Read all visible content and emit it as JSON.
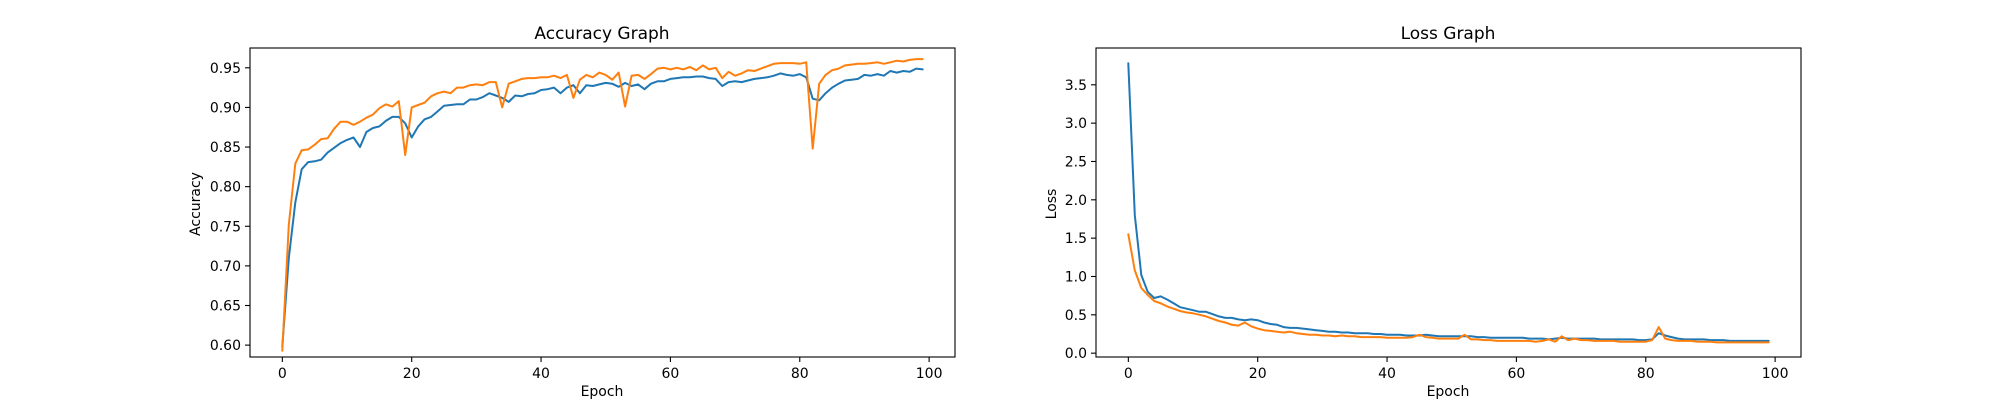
{
  "chart_data": [
    {
      "type": "line",
      "title": "Accuracy Graph",
      "xlabel": "Epoch",
      "ylabel": "Accuracy",
      "xlim": [
        -5,
        104
      ],
      "ylim": [
        0.585,
        0.975
      ],
      "xticks": [
        0,
        20,
        40,
        60,
        80,
        100
      ],
      "yticks": [
        0.6,
        0.65,
        0.7,
        0.75,
        0.8,
        0.85,
        0.9,
        0.95
      ],
      "ytick_labels": [
        "0.60",
        "0.65",
        "0.70",
        "0.75",
        "0.80",
        "0.85",
        "0.90",
        "0.95"
      ],
      "grid": false,
      "series": [
        {
          "color": "#1f77b4",
          "x": [
            0,
            1,
            2,
            3,
            4,
            5,
            6,
            7,
            8,
            9,
            10,
            11,
            12,
            13,
            14,
            15,
            16,
            17,
            18,
            19,
            20,
            21,
            22,
            23,
            24,
            25,
            26,
            27,
            28,
            29,
            30,
            31,
            32,
            33,
            34,
            35,
            36,
            37,
            38,
            39,
            40,
            41,
            42,
            43,
            44,
            45,
            46,
            47,
            48,
            49,
            50,
            51,
            52,
            53,
            54,
            55,
            56,
            57,
            58,
            59,
            60,
            61,
            62,
            63,
            64,
            65,
            66,
            67,
            68,
            69,
            70,
            71,
            72,
            73,
            74,
            75,
            76,
            77,
            78,
            79,
            80,
            81,
            82,
            83,
            84,
            85,
            86,
            87,
            88,
            89,
            90,
            91,
            92,
            93,
            94,
            95,
            96,
            97,
            98,
            99
          ],
          "values": [
            0.598,
            0.71,
            0.78,
            0.822,
            0.831,
            0.832,
            0.834,
            0.843,
            0.849,
            0.855,
            0.859,
            0.862,
            0.85,
            0.869,
            0.874,
            0.876,
            0.883,
            0.888,
            0.888,
            0.88,
            0.862,
            0.876,
            0.885,
            0.888,
            0.895,
            0.902,
            0.903,
            0.904,
            0.904,
            0.91,
            0.91,
            0.913,
            0.918,
            0.915,
            0.912,
            0.907,
            0.915,
            0.914,
            0.917,
            0.918,
            0.922,
            0.923,
            0.925,
            0.918,
            0.925,
            0.928,
            0.918,
            0.928,
            0.927,
            0.929,
            0.931,
            0.93,
            0.926,
            0.931,
            0.927,
            0.929,
            0.923,
            0.93,
            0.933,
            0.933,
            0.936,
            0.937,
            0.938,
            0.938,
            0.939,
            0.939,
            0.937,
            0.936,
            0.927,
            0.932,
            0.933,
            0.932,
            0.934,
            0.936,
            0.937,
            0.938,
            0.94,
            0.943,
            0.941,
            0.94,
            0.942,
            0.938,
            0.911,
            0.909,
            0.918,
            0.925,
            0.93,
            0.934,
            0.935,
            0.936,
            0.941,
            0.94,
            0.942,
            0.94,
            0.946,
            0.944,
            0.946,
            0.945,
            0.949,
            0.948
          ]
        },
        {
          "color": "#ff7f0e",
          "x": [
            0,
            1,
            2,
            3,
            4,
            5,
            6,
            7,
            8,
            9,
            10,
            11,
            12,
            13,
            14,
            15,
            16,
            17,
            18,
            19,
            20,
            21,
            22,
            23,
            24,
            25,
            26,
            27,
            28,
            29,
            30,
            31,
            32,
            33,
            34,
            35,
            36,
            37,
            38,
            39,
            40,
            41,
            42,
            43,
            44,
            45,
            46,
            47,
            48,
            49,
            50,
            51,
            52,
            53,
            54,
            55,
            56,
            57,
            58,
            59,
            60,
            61,
            62,
            63,
            64,
            65,
            66,
            67,
            68,
            69,
            70,
            71,
            72,
            73,
            74,
            75,
            76,
            77,
            78,
            79,
            80,
            81,
            82,
            83,
            84,
            85,
            86,
            87,
            88,
            89,
            90,
            91,
            92,
            93,
            94,
            95,
            96,
            97,
            98,
            99
          ],
          "values": [
            0.593,
            0.752,
            0.829,
            0.846,
            0.847,
            0.853,
            0.86,
            0.861,
            0.873,
            0.882,
            0.882,
            0.878,
            0.882,
            0.887,
            0.891,
            0.899,
            0.904,
            0.901,
            0.908,
            0.84,
            0.9,
            0.903,
            0.906,
            0.914,
            0.918,
            0.92,
            0.918,
            0.925,
            0.925,
            0.928,
            0.929,
            0.928,
            0.932,
            0.932,
            0.9,
            0.93,
            0.933,
            0.936,
            0.937,
            0.937,
            0.938,
            0.938,
            0.94,
            0.937,
            0.941,
            0.912,
            0.935,
            0.941,
            0.938,
            0.944,
            0.941,
            0.935,
            0.944,
            0.901,
            0.94,
            0.941,
            0.936,
            0.942,
            0.949,
            0.95,
            0.948,
            0.95,
            0.948,
            0.951,
            0.947,
            0.953,
            0.948,
            0.95,
            0.937,
            0.945,
            0.94,
            0.943,
            0.947,
            0.946,
            0.949,
            0.952,
            0.955,
            0.956,
            0.956,
            0.956,
            0.955,
            0.957,
            0.848,
            0.93,
            0.941,
            0.947,
            0.949,
            0.953,
            0.954,
            0.955,
            0.955,
            0.956,
            0.957,
            0.955,
            0.957,
            0.959,
            0.958,
            0.96,
            0.961,
            0.961
          ]
        }
      ]
    },
    {
      "type": "line",
      "title": "Loss Graph",
      "xlabel": "Epoch",
      "ylabel": "Loss",
      "xlim": [
        -5,
        104
      ],
      "ylim": [
        -0.05,
        3.98
      ],
      "xticks": [
        0,
        20,
        40,
        60,
        80,
        100
      ],
      "yticks": [
        0.0,
        0.5,
        1.0,
        1.5,
        2.0,
        2.5,
        3.0,
        3.5
      ],
      "ytick_labels": [
        "0.0",
        "0.5",
        "1.0",
        "1.5",
        "2.0",
        "2.5",
        "3.0",
        "3.5"
      ],
      "grid": false,
      "series": [
        {
          "color": "#1f77b4",
          "x": [
            0,
            1,
            2,
            3,
            4,
            5,
            6,
            7,
            8,
            9,
            10,
            11,
            12,
            13,
            14,
            15,
            16,
            17,
            18,
            19,
            20,
            21,
            22,
            23,
            24,
            25,
            26,
            27,
            28,
            29,
            30,
            31,
            32,
            33,
            34,
            35,
            36,
            37,
            38,
            39,
            40,
            41,
            42,
            43,
            44,
            45,
            46,
            47,
            48,
            49,
            50,
            51,
            52,
            53,
            54,
            55,
            56,
            57,
            58,
            59,
            60,
            61,
            62,
            63,
            64,
            65,
            66,
            67,
            68,
            69,
            70,
            71,
            72,
            73,
            74,
            75,
            76,
            77,
            78,
            79,
            80,
            81,
            82,
            83,
            84,
            85,
            86,
            87,
            88,
            89,
            90,
            91,
            92,
            93,
            94,
            95,
            96,
            97,
            98,
            99
          ],
          "values": [
            3.78,
            1.8,
            1.02,
            0.8,
            0.72,
            0.74,
            0.7,
            0.65,
            0.6,
            0.58,
            0.56,
            0.54,
            0.54,
            0.51,
            0.48,
            0.46,
            0.46,
            0.44,
            0.43,
            0.44,
            0.43,
            0.4,
            0.38,
            0.37,
            0.34,
            0.33,
            0.33,
            0.32,
            0.31,
            0.3,
            0.29,
            0.28,
            0.28,
            0.27,
            0.27,
            0.26,
            0.26,
            0.26,
            0.25,
            0.25,
            0.24,
            0.24,
            0.24,
            0.23,
            0.23,
            0.23,
            0.24,
            0.23,
            0.22,
            0.22,
            0.22,
            0.22,
            0.22,
            0.22,
            0.21,
            0.21,
            0.2,
            0.2,
            0.2,
            0.2,
            0.2,
            0.2,
            0.19,
            0.19,
            0.19,
            0.18,
            0.19,
            0.2,
            0.19,
            0.19,
            0.19,
            0.19,
            0.19,
            0.18,
            0.18,
            0.18,
            0.18,
            0.18,
            0.18,
            0.17,
            0.17,
            0.18,
            0.26,
            0.23,
            0.21,
            0.19,
            0.18,
            0.18,
            0.18,
            0.18,
            0.17,
            0.17,
            0.17,
            0.16,
            0.16,
            0.16,
            0.16,
            0.16,
            0.16,
            0.16
          ]
        },
        {
          "color": "#ff7f0e",
          "x": [
            0,
            1,
            2,
            3,
            4,
            5,
            6,
            7,
            8,
            9,
            10,
            11,
            12,
            13,
            14,
            15,
            16,
            17,
            18,
            19,
            20,
            21,
            22,
            23,
            24,
            25,
            26,
            27,
            28,
            29,
            30,
            31,
            32,
            33,
            34,
            35,
            36,
            37,
            38,
            39,
            40,
            41,
            42,
            43,
            44,
            45,
            46,
            47,
            48,
            49,
            50,
            51,
            52,
            53,
            54,
            55,
            56,
            57,
            58,
            59,
            60,
            61,
            62,
            63,
            64,
            65,
            66,
            67,
            68,
            69,
            70,
            71,
            72,
            73,
            74,
            75,
            76,
            77,
            78,
            79,
            80,
            81,
            82,
            83,
            84,
            85,
            86,
            87,
            88,
            89,
            90,
            91,
            92,
            93,
            94,
            95,
            96,
            97,
            98,
            99
          ],
          "values": [
            1.55,
            1.08,
            0.85,
            0.76,
            0.68,
            0.65,
            0.61,
            0.58,
            0.55,
            0.53,
            0.52,
            0.5,
            0.48,
            0.45,
            0.42,
            0.4,
            0.37,
            0.36,
            0.4,
            0.35,
            0.32,
            0.3,
            0.29,
            0.28,
            0.27,
            0.28,
            0.26,
            0.25,
            0.24,
            0.24,
            0.23,
            0.23,
            0.22,
            0.23,
            0.22,
            0.22,
            0.21,
            0.21,
            0.21,
            0.21,
            0.2,
            0.2,
            0.2,
            0.2,
            0.21,
            0.24,
            0.21,
            0.2,
            0.19,
            0.19,
            0.19,
            0.19,
            0.24,
            0.18,
            0.18,
            0.17,
            0.17,
            0.16,
            0.16,
            0.16,
            0.16,
            0.16,
            0.16,
            0.15,
            0.16,
            0.18,
            0.15,
            0.22,
            0.17,
            0.19,
            0.17,
            0.17,
            0.16,
            0.16,
            0.16,
            0.16,
            0.15,
            0.15,
            0.15,
            0.15,
            0.15,
            0.17,
            0.34,
            0.19,
            0.17,
            0.16,
            0.16,
            0.16,
            0.15,
            0.15,
            0.15,
            0.14,
            0.14,
            0.14,
            0.14,
            0.14,
            0.14,
            0.14,
            0.14,
            0.14
          ]
        }
      ]
    }
  ]
}
